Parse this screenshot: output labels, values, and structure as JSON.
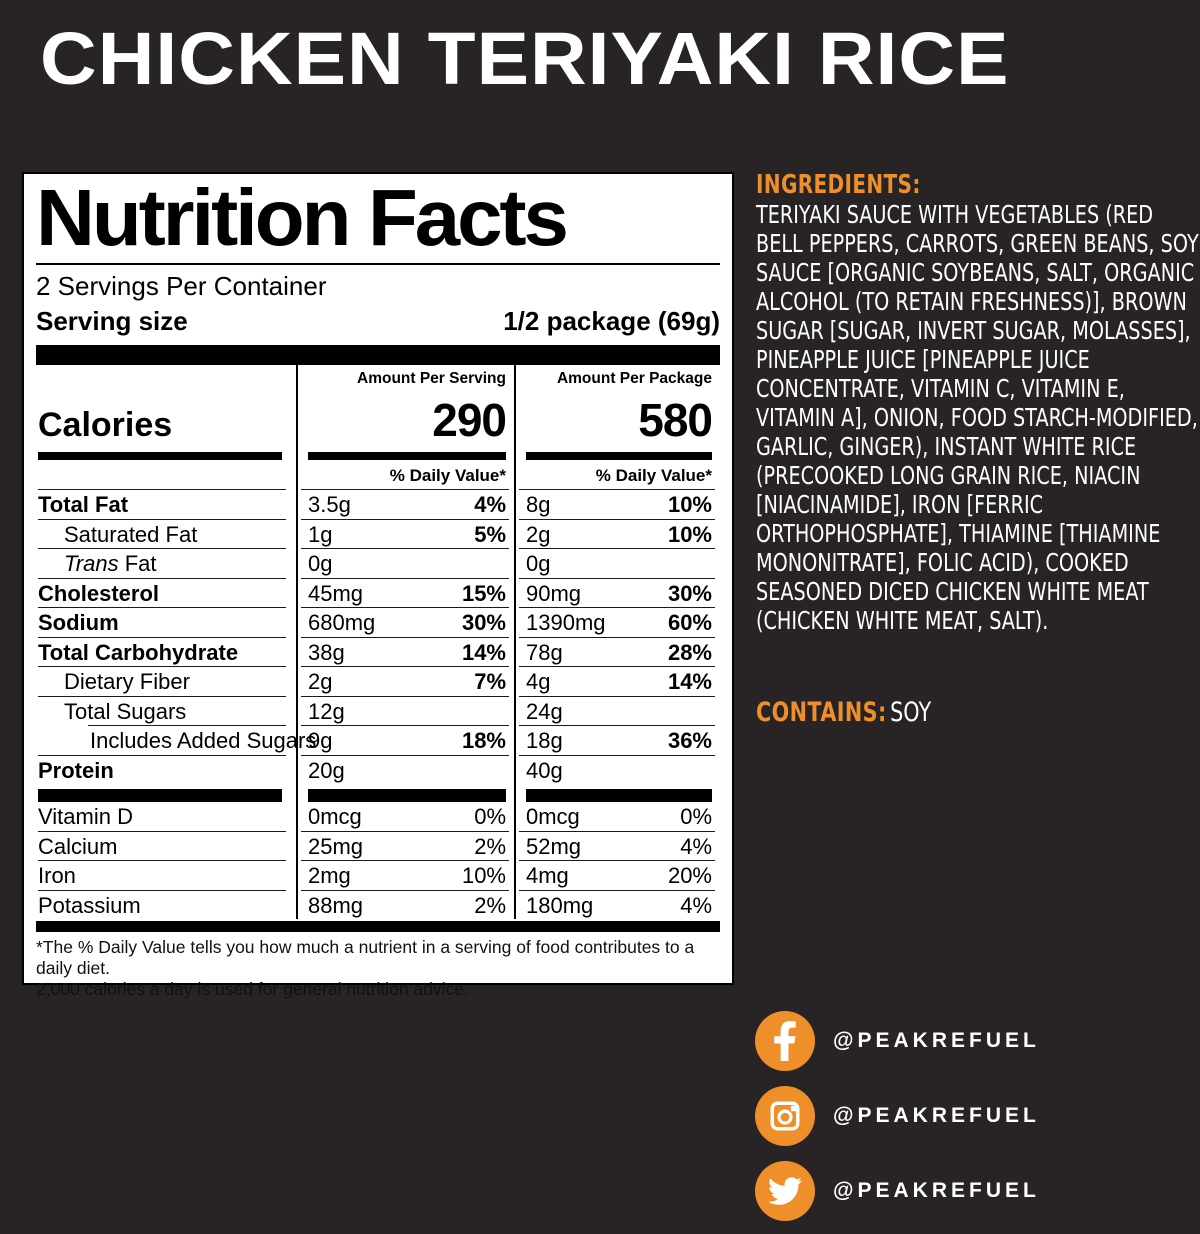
{
  "page": {
    "background": "#282425",
    "accent_orange": "#EF8F2A"
  },
  "title": "CHICKEN TERIYAKI RICE",
  "label": {
    "heading": "Nutrition Facts",
    "servings_per_container": "2 Servings Per Container",
    "serving_size_label": "Serving size",
    "serving_size_value": "1/2 package (69g)",
    "col_headers": {
      "serving": "Amount Per Serving",
      "package": "Amount Per Package"
    },
    "calories_label": "Calories",
    "calories_serving": "290",
    "calories_package": "580",
    "daily_value_header": "% Daily Value*",
    "nutrients": [
      {
        "name": "Total Fat",
        "bold": true,
        "s_amt": "3.5g",
        "s_pct": "4%",
        "p_amt": "8g",
        "p_pct": "10%"
      },
      {
        "name": "Saturated Fat",
        "indent": 1,
        "s_amt": "1g",
        "s_pct": "5%",
        "p_amt": "2g",
        "p_pct": "10%"
      },
      {
        "name_italic": "Trans",
        "name": " Fat",
        "indent": 1,
        "s_amt": "0g",
        "s_pct": "",
        "p_amt": "0g",
        "p_pct": ""
      },
      {
        "name": "Cholesterol",
        "bold": true,
        "s_amt": "45mg",
        "s_pct": "15%",
        "p_amt": "90mg",
        "p_pct": "30%"
      },
      {
        "name": "Sodium",
        "bold": true,
        "s_amt": "680mg",
        "s_pct": "30%",
        "p_amt": "1390mg",
        "p_pct": "60%"
      },
      {
        "name": "Total Carbohydrate",
        "bold": true,
        "s_amt": "38g",
        "s_pct": "14%",
        "p_amt": "78g",
        "p_pct": "28%"
      },
      {
        "name": "Dietary Fiber",
        "indent": 1,
        "s_amt": "2g",
        "s_pct": "7%",
        "p_amt": "4g",
        "p_pct": "14%"
      },
      {
        "name": "Total Sugars",
        "indent": 1,
        "s_amt": "12g",
        "s_pct": "",
        "p_amt": "24g",
        "p_pct": ""
      },
      {
        "name": "Includes Added Sugars",
        "indent": 2,
        "line_indent": true,
        "s_amt": "9g",
        "s_pct": "18%",
        "p_amt": "18g",
        "p_pct": "36%"
      },
      {
        "name": "Protein",
        "bold": true,
        "s_amt": "20g",
        "s_pct": "",
        "p_amt": "40g",
        "p_pct": ""
      }
    ],
    "vitamins": [
      {
        "name": "Vitamin D",
        "s_amt": "0mcg",
        "s_pct": "0%",
        "p_amt": "0mcg",
        "p_pct": "0%"
      },
      {
        "name": "Calcium",
        "s_amt": "25mg",
        "s_pct": "2%",
        "p_amt": "52mg",
        "p_pct": "4%"
      },
      {
        "name": "Iron",
        "s_amt": "2mg",
        "s_pct": "10%",
        "p_amt": "4mg",
        "p_pct": "20%"
      },
      {
        "name": "Potassium",
        "s_amt": "88mg",
        "s_pct": "2%",
        "p_amt": "180mg",
        "p_pct": "4%"
      }
    ],
    "footnote_line1": "*The % Daily Value tells you how much a nutrient in a serving of food contributes to a daily diet.",
    "footnote_line2": "2,000 calories a day is used for general nutrition advice."
  },
  "ingredients": {
    "heading": "INGREDIENTS:",
    "text": "TERIYAKI SAUCE WITH VEGETABLES (RED BELL PEPPERS, CARROTS, GREEN BEANS, SOY SAUCE [ORGANIC SOYBEANS, SALT, ORGANIC ALCOHOL (TO RETAIN FRESHNESS)], BROWN SUGAR [SUGAR, INVERT SUGAR, MOLASSES], PINEAPPLE JUICE [PINEAPPLE JUICE CONCENTRATE, VITAMIN C, VITAMIN E, VITAMIN A], ONION, FOOD STARCH-MODIFIED, GARLIC, GINGER), INSTANT WHITE RICE (PRECOOKED LONG GRAIN RICE, NIACIN [NIACINAMIDE], IRON [FERRIC ORTHOPHOSPHATE], THIAMINE [THIAMINE MONONITRATE], FOLIC ACID), COOKED SEASONED DICED CHICKEN WHITE MEAT (CHICKEN WHITE MEAT, SALT)."
  },
  "contains": {
    "label": "CONTAINS:",
    "value": "SOY"
  },
  "social": [
    {
      "icon": "facebook-icon",
      "handle": "@PEAKREFUEL"
    },
    {
      "icon": "instagram-icon",
      "handle": "@PEAKREFUEL"
    },
    {
      "icon": "twitter-icon",
      "handle": "@PEAKREFUEL"
    }
  ]
}
